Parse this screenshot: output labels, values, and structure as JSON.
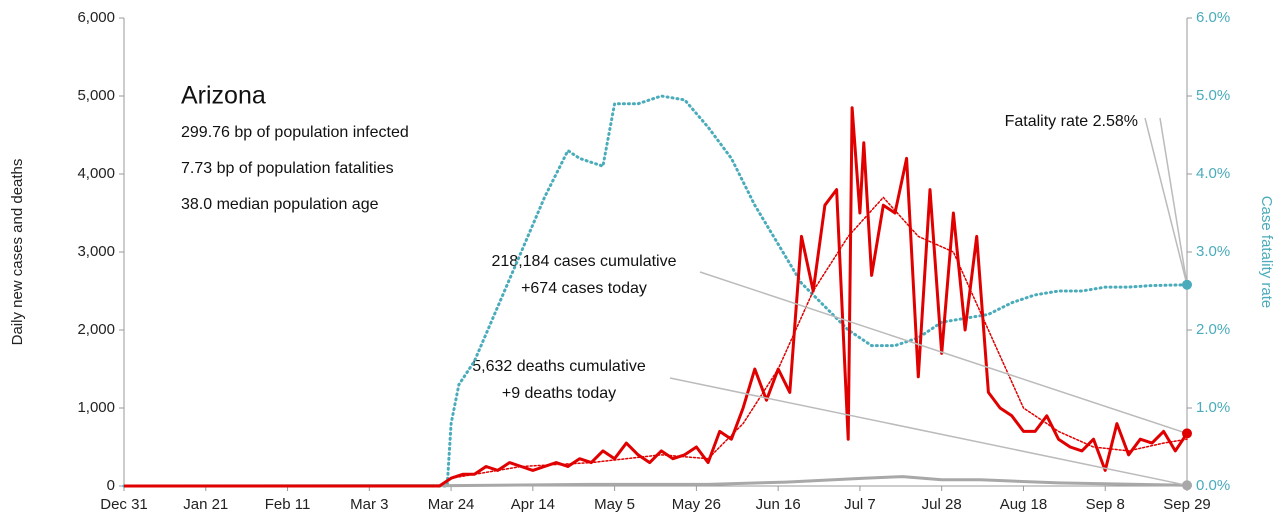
{
  "chart_data": {
    "type": "line",
    "ylabel": "Daily new cases and deaths",
    "y2label": "Case fatality rate",
    "xlim": [
      0,
      273
    ],
    "xticks": [
      {
        "value": 0,
        "label": "Dec 31"
      },
      {
        "value": 21,
        "label": "Jan 21"
      },
      {
        "value": 42,
        "label": "Feb 11"
      },
      {
        "value": 63,
        "label": "Mar 3"
      },
      {
        "value": 84,
        "label": "Mar 24"
      },
      {
        "value": 105,
        "label": "Apr 14"
      },
      {
        "value": 126,
        "label": "May 5"
      },
      {
        "value": 147,
        "label": "May 26"
      },
      {
        "value": 168,
        "label": "Jun 16"
      },
      {
        "value": 189,
        "label": "Jul 7"
      },
      {
        "value": 210,
        "label": "Jul 28"
      },
      {
        "value": 231,
        "label": "Aug 18"
      },
      {
        "value": 252,
        "label": "Sep 8"
      },
      {
        "value": 273,
        "label": "Sep 29"
      }
    ],
    "ylim": [
      0,
      6000
    ],
    "yticks": [
      0,
      {
        "value": 1000,
        "label": "1,000"
      },
      {
        "value": 2000,
        "label": "2,000"
      },
      {
        "value": 3000,
        "label": "3,000"
      },
      {
        "value": 4000,
        "label": "4,000"
      },
      {
        "value": 5000,
        "label": "5,000"
      },
      {
        "value": 6000,
        "label": "6,000"
      }
    ],
    "y2lim": [
      0,
      6
    ],
    "y2ticks": [
      {
        "value": 0,
        "label": "0.0%"
      },
      {
        "value": 1,
        "label": "1.0%"
      },
      {
        "value": 2,
        "label": "2.0%"
      },
      {
        "value": 3,
        "label": "3.0%"
      },
      {
        "value": 4,
        "label": "4.0%"
      },
      {
        "value": 5,
        "label": "5.0%"
      },
      {
        "value": 6,
        "label": "6.0%"
      }
    ],
    "info": {
      "title": "Arizona",
      "lines": [
        "299.76 bp of population infected",
        "7.73 bp of population fatalities",
        "38.0 median population age"
      ]
    },
    "annotations": [
      "Fatality rate 2.58%",
      "218,184 cases cumulative",
      "+674 cases today",
      "5,632 deaths cumulative",
      "+9 deaths today"
    ],
    "series": [
      {
        "color": "#4aabbb",
        "style": "dotted",
        "axis": "y2",
        "width": 3,
        "x": [
          0,
          83,
          84,
          86,
          90,
          96,
          102,
          108,
          114,
          117,
          123,
          126,
          132,
          138,
          144,
          150,
          156,
          162,
          168,
          174,
          180,
          186,
          192,
          198,
          204,
          210,
          216,
          222,
          228,
          234,
          240,
          246,
          252,
          258,
          264,
          273
        ],
        "values": [
          0,
          0,
          0.8,
          1.3,
          1.6,
          2.3,
          3.0,
          3.7,
          4.3,
          4.2,
          4.1,
          4.9,
          4.9,
          5.0,
          4.95,
          4.6,
          4.2,
          3.6,
          3.1,
          2.6,
          2.3,
          2.0,
          1.8,
          1.8,
          1.9,
          2.1,
          2.15,
          2.2,
          2.35,
          2.45,
          2.5,
          2.5,
          2.55,
          2.55,
          2.57,
          2.58
        ]
      },
      {
        "color": "#a8a8a8",
        "style": "solid",
        "width": 3,
        "x": [
          0,
          84,
          120,
          150,
          170,
          190,
          200,
          210,
          220,
          240,
          273
        ],
        "values": [
          0,
          5,
          20,
          20,
          50,
          100,
          120,
          80,
          80,
          40,
          9
        ]
      },
      {
        "color": "#e00000",
        "style": "dotted",
        "width": 1.5,
        "x": [
          84,
          102,
          120,
          138,
          150,
          159,
          168,
          177,
          186,
          195,
          204,
          213,
          222,
          231,
          240,
          249,
          258,
          267,
          273
        ],
        "values": [
          100,
          250,
          300,
          400,
          350,
          800,
          1500,
          2500,
          3200,
          3700,
          3200,
          3000,
          2000,
          1000,
          700,
          500,
          450,
          550,
          600
        ]
      },
      {
        "color": "#e00000",
        "style": "solid",
        "width": 3,
        "x": [
          0,
          81,
          84,
          87,
          90,
          93,
          96,
          99,
          102,
          105,
          108,
          111,
          114,
          117,
          120,
          123,
          126,
          129,
          132,
          135,
          138,
          141,
          144,
          147,
          150,
          153,
          156,
          159,
          162,
          165,
          168,
          171,
          174,
          177,
          180,
          183,
          186,
          187,
          189,
          190,
          192,
          195,
          198,
          201,
          204,
          207,
          210,
          213,
          216,
          219,
          222,
          225,
          228,
          231,
          234,
          237,
          240,
          243,
          246,
          249,
          252,
          255,
          258,
          261,
          264,
          267,
          270,
          273
        ],
        "values": [
          0,
          0,
          100,
          150,
          150,
          250,
          200,
          300,
          250,
          200,
          250,
          300,
          250,
          350,
          300,
          450,
          350,
          550,
          400,
          300,
          450,
          350,
          400,
          500,
          300,
          700,
          600,
          1000,
          1500,
          1100,
          1500,
          1200,
          3200,
          2500,
          3600,
          3800,
          600,
          4850,
          3500,
          4400,
          2700,
          3600,
          3500,
          4200,
          1400,
          3800,
          1700,
          3500,
          2000,
          3200,
          1200,
          1000,
          900,
          700,
          700,
          900,
          600,
          500,
          450,
          600,
          200,
          800,
          400,
          600,
          550,
          700,
          450,
          674
        ]
      }
    ]
  }
}
